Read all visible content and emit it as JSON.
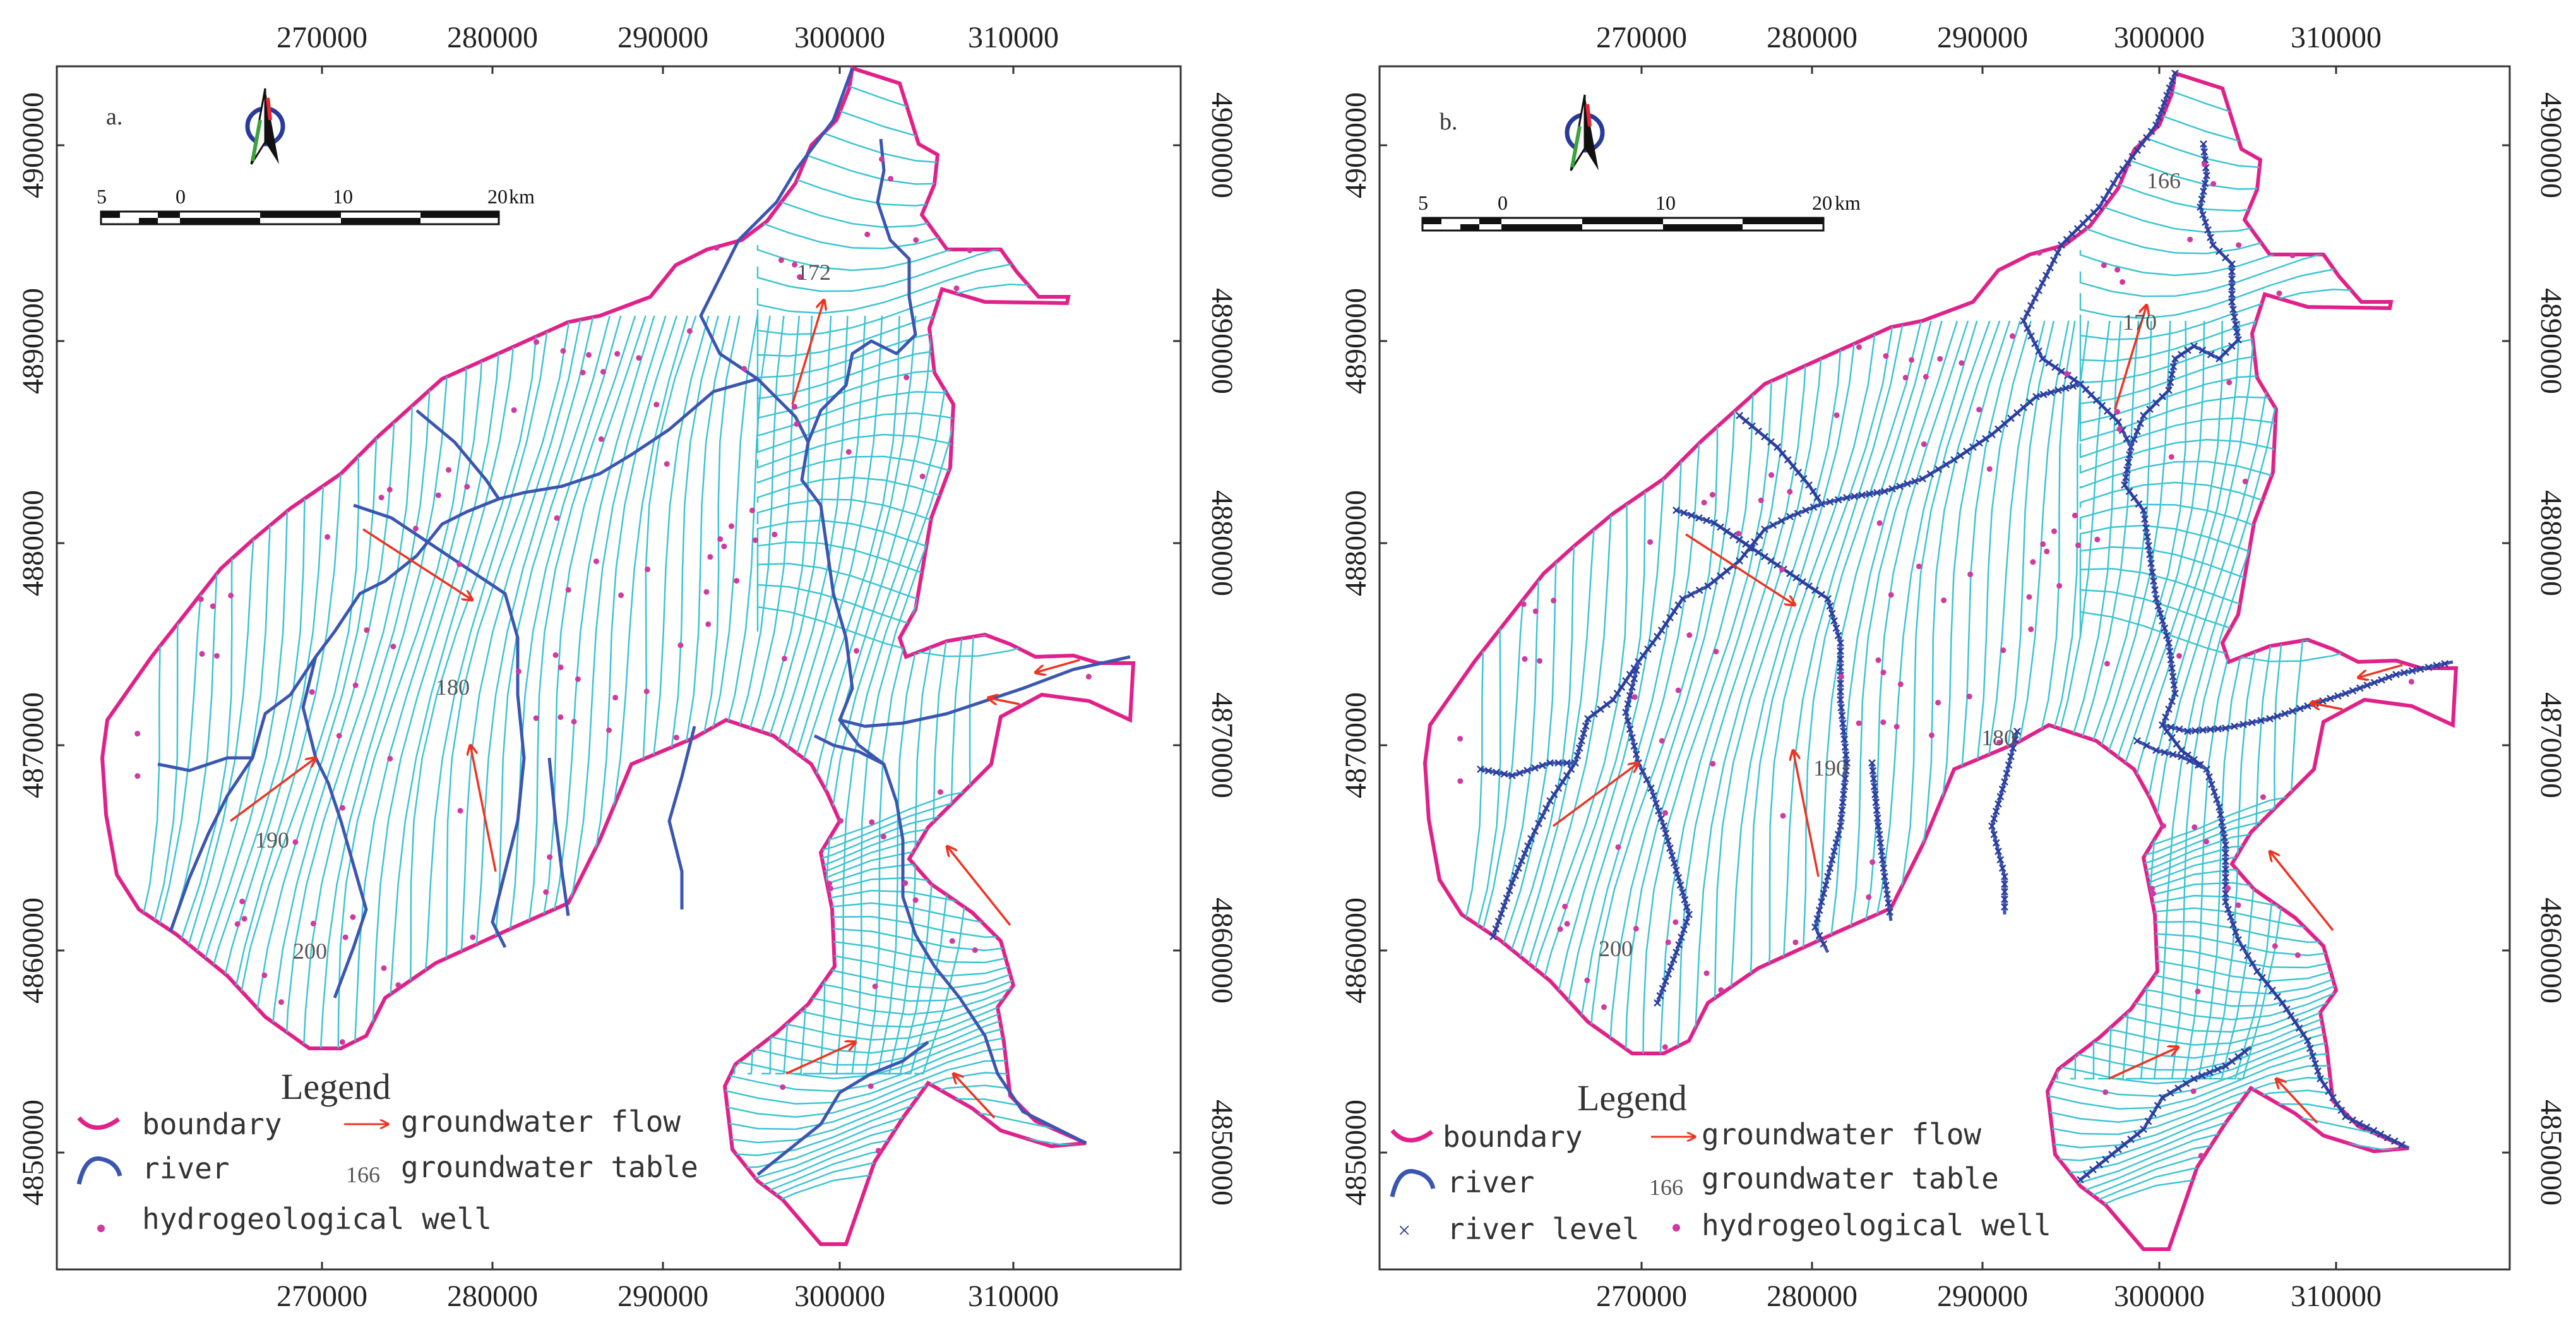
{
  "panels": [
    {
      "id": "a",
      "label": "a.",
      "x_ticks": [
        "270000",
        "280000",
        "290000",
        "300000",
        "310000"
      ],
      "y_ticks": [
        "4900000",
        "4890000",
        "4880000",
        "4870000",
        "4860000",
        "4850000"
      ],
      "scalebar": {
        "labels": [
          "5",
          "0",
          "10",
          "20"
        ],
        "unit": "km"
      },
      "contour_labels": [
        "172",
        "180",
        "190",
        "200"
      ],
      "legend": {
        "title": "Legend",
        "items": [
          {
            "symbol": "boundary-line",
            "label": "boundary"
          },
          {
            "symbol": "flow-arrow",
            "label": "groundwater flow"
          },
          {
            "symbol": "river-line",
            "label": "river"
          },
          {
            "symbol": "contour-value",
            "value": "166",
            "label": "groundwater table"
          },
          {
            "symbol": "well-dot",
            "label": "hydrogeological well"
          }
        ]
      }
    },
    {
      "id": "b",
      "label": "b.",
      "x_ticks": [
        "270000",
        "280000",
        "290000",
        "300000",
        "310000"
      ],
      "y_ticks": [
        "4900000",
        "4890000",
        "4880000",
        "4870000",
        "4860000",
        "4850000"
      ],
      "scalebar": {
        "labels": [
          "5",
          "0",
          "10",
          "20"
        ],
        "unit": "km"
      },
      "contour_labels": [
        "166",
        "170",
        "180",
        "190",
        "200"
      ],
      "legend": {
        "title": "Legend",
        "items": [
          {
            "symbol": "boundary-line",
            "label": "boundary"
          },
          {
            "symbol": "flow-arrow",
            "label": "groundwater flow"
          },
          {
            "symbol": "river-line",
            "label": "river"
          },
          {
            "symbol": "contour-value",
            "value": "166",
            "label": "groundwater table"
          },
          {
            "symbol": "cross-marker",
            "label": "river level"
          },
          {
            "symbol": "well-dot",
            "label": "hydrogeological well"
          }
        ]
      }
    }
  ],
  "colors": {
    "boundary": "#e0218a",
    "river": "#3a56b0",
    "contour": "#3cc4d2",
    "flow": "#ee3322",
    "well": "#d03aa0",
    "river_level": "#2a3a9a"
  },
  "icons": [
    "north-arrow-icon",
    "scalebar"
  ]
}
